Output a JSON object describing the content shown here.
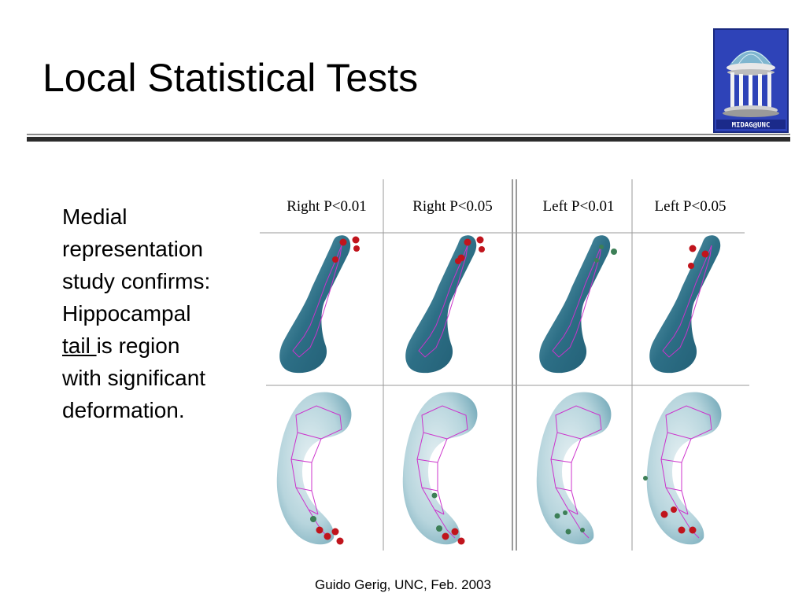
{
  "slide": {
    "title": "Local Statistical Tests",
    "body_lines": [
      "Medial",
      "representation",
      "study confirms:",
      "Hippocampal"
    ],
    "body_underlined": "tail ",
    "body_after_underline": "is region",
    "body_lines_end": [
      "with significant",
      "deformation."
    ],
    "footer": "Guido Gerig, UNC, Feb. 2003"
  },
  "logo": {
    "caption": "MIDAG@UNC"
  },
  "figure": {
    "columns": [
      "Right P<0.01",
      "Right P<0.05",
      "Left P<0.01",
      "Left P<0.05"
    ]
  },
  "colors": {
    "title_rule": "#2b2b2b",
    "logo_bg": "#2e43b8",
    "hippocampus_dark": "#2d6f86",
    "hippocampus_light": "#a9cfd8",
    "medial_mesh": "#cc33cc",
    "significant_marker": "#c0141c",
    "neutral_marker": "#3d7f57"
  }
}
